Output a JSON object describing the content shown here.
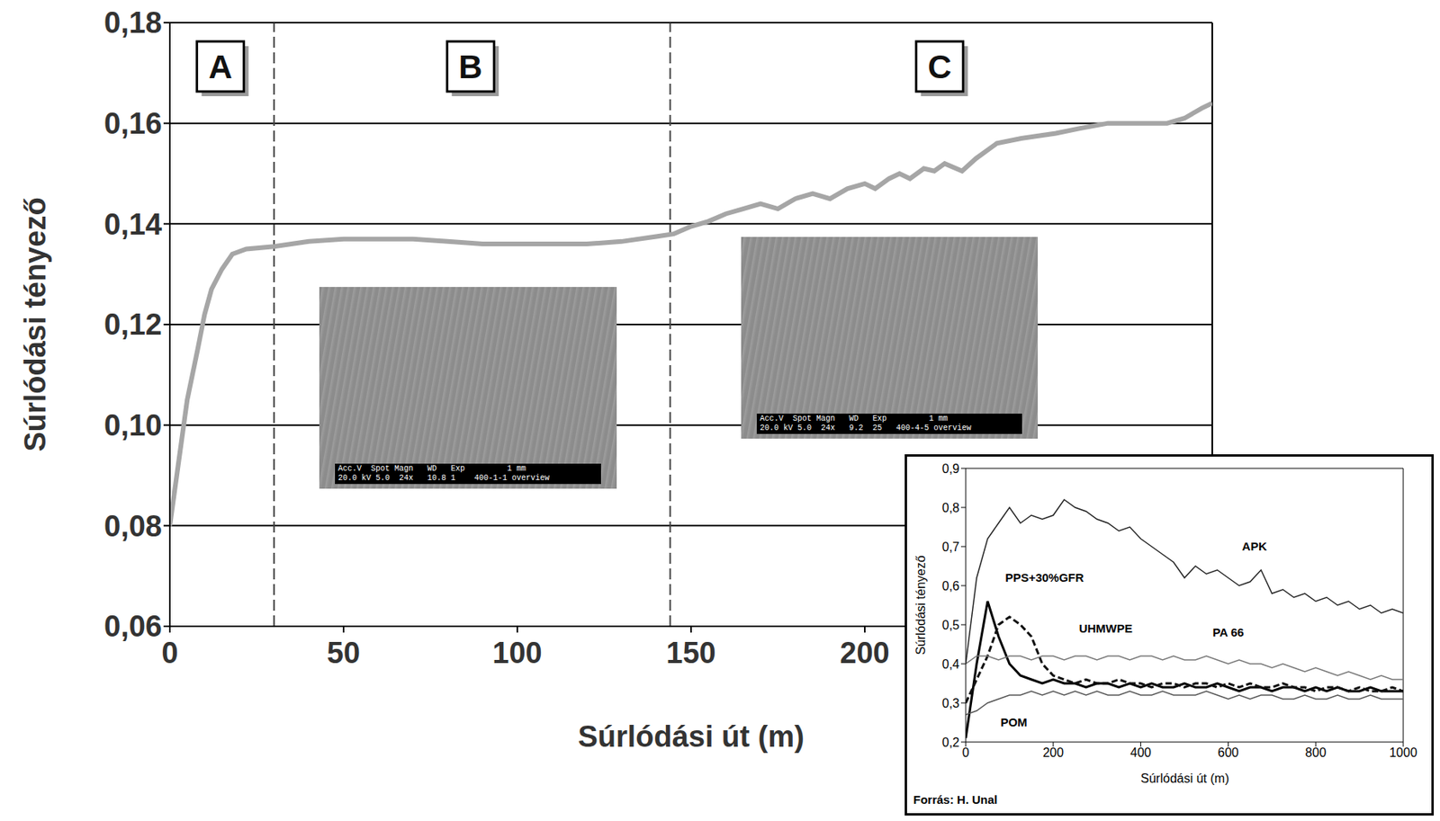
{
  "chart_data": [
    {
      "type": "line",
      "x_label": "Súrlódási út (m)",
      "y_label": "Súrlódási tényező",
      "color": "#a6a6a6",
      "grid": true,
      "xlim": [
        0,
        300
      ],
      "xticks": [
        0,
        50,
        100,
        150,
        200
      ],
      "ylim": [
        0.06,
        0.18
      ],
      "yticks": [
        {
          "value": 0.06,
          "label": "0,06"
        },
        {
          "value": 0.08,
          "label": "0,08"
        },
        {
          "value": 0.1,
          "label": "0,10"
        },
        {
          "value": 0.12,
          "label": "0,12"
        },
        {
          "value": 0.14,
          "label": "0,14"
        },
        {
          "value": 0.16,
          "label": "0,16"
        },
        {
          "value": 0.18,
          "label": "0,18"
        }
      ],
      "x": [
        0,
        2,
        5,
        8,
        10,
        12,
        15,
        18,
        22,
        30,
        40,
        50,
        60,
        70,
        80,
        90,
        100,
        110,
        120,
        130,
        140,
        145,
        150,
        155,
        160,
        165,
        170,
        175,
        180,
        185,
        190,
        195,
        200,
        203,
        207,
        210,
        213,
        217,
        220,
        223,
        228,
        232,
        238,
        245,
        255,
        262,
        270,
        280,
        287,
        292,
        297,
        300
      ],
      "values": [
        0.08,
        0.09,
        0.105,
        0.115,
        0.122,
        0.127,
        0.131,
        0.134,
        0.135,
        0.1355,
        0.1365,
        0.137,
        0.137,
        0.137,
        0.1365,
        0.136,
        0.136,
        0.136,
        0.136,
        0.1365,
        0.1375,
        0.138,
        0.1395,
        0.1405,
        0.142,
        0.143,
        0.144,
        0.143,
        0.145,
        0.146,
        0.145,
        0.147,
        0.148,
        0.147,
        0.149,
        0.15,
        0.149,
        0.151,
        0.1505,
        0.152,
        0.1505,
        0.153,
        0.156,
        0.157,
        0.158,
        0.159,
        0.16,
        0.16,
        0.16,
        0.161,
        0.163,
        0.164
      ],
      "regions": [
        {
          "label": "A",
          "start": 0,
          "end": 30
        },
        {
          "label": "B",
          "start": 30,
          "end": 144
        },
        {
          "label": "C",
          "start": 144,
          "end": 300
        }
      ],
      "images": [
        {
          "caption_lines": [
            "Acc.V  Spot Magn   WD   Exp         1 mm",
            "20.0 kV 5.0  24x   10.8 1    400-1-1 overview"
          ]
        },
        {
          "caption_lines": [
            "Acc.V  Spot Magn   WD   Exp         1 mm",
            "20.0 kV 5.0  24x   9.2  25   400-4-5 overview"
          ]
        }
      ]
    },
    {
      "type": "line",
      "x_label": "Súrlódási út (m)",
      "y_label": "Súrlódási tényező",
      "source": "Forrás: H. Unal",
      "grid": false,
      "xlim": [
        0,
        1000
      ],
      "xticks": [
        0,
        200,
        400,
        600,
        800,
        1000
      ],
      "ylim": [
        0.2,
        0.9
      ],
      "yticks": [
        {
          "value": 0.2,
          "label": "0,2"
        },
        {
          "value": 0.3,
          "label": "0,3"
        },
        {
          "value": 0.4,
          "label": "0,4"
        },
        {
          "value": 0.5,
          "label": "0,5"
        },
        {
          "value": 0.6,
          "label": "0,6"
        },
        {
          "value": 0.7,
          "label": "0,7"
        },
        {
          "value": 0.8,
          "label": "0,8"
        },
        {
          "value": 0.9,
          "label": "0,9"
        }
      ],
      "x": [
        0,
        25,
        50,
        75,
        100,
        125,
        150,
        175,
        200,
        225,
        250,
        275,
        300,
        325,
        350,
        375,
        400,
        425,
        450,
        475,
        500,
        525,
        550,
        575,
        600,
        625,
        650,
        675,
        700,
        725,
        750,
        775,
        800,
        825,
        850,
        875,
        900,
        925,
        950,
        975,
        1000
      ],
      "series": [
        {
          "name": "APK",
          "color": "#222222",
          "line_style": "solid",
          "values": [
            0.4,
            0.62,
            0.72,
            0.76,
            0.8,
            0.76,
            0.78,
            0.77,
            0.78,
            0.82,
            0.8,
            0.79,
            0.77,
            0.76,
            0.74,
            0.75,
            0.72,
            0.7,
            0.68,
            0.66,
            0.62,
            0.65,
            0.63,
            0.64,
            0.62,
            0.6,
            0.61,
            0.64,
            0.58,
            0.59,
            0.57,
            0.58,
            0.56,
            0.57,
            0.55,
            0.56,
            0.54,
            0.55,
            0.53,
            0.54,
            0.53
          ]
        },
        {
          "name": "PPS+30%GFR",
          "color": "#000000",
          "line_style": "solid",
          "values": [
            0.21,
            0.4,
            0.56,
            0.47,
            0.4,
            0.37,
            0.36,
            0.35,
            0.36,
            0.35,
            0.35,
            0.34,
            0.35,
            0.35,
            0.34,
            0.35,
            0.34,
            0.35,
            0.34,
            0.34,
            0.35,
            0.34,
            0.34,
            0.35,
            0.34,
            0.33,
            0.34,
            0.34,
            0.33,
            0.34,
            0.34,
            0.33,
            0.34,
            0.33,
            0.34,
            0.33,
            0.33,
            0.34,
            0.33,
            0.33,
            0.33
          ]
        },
        {
          "name": "UHMWPE",
          "color": "#111111",
          "line_style": "dashed",
          "values": [
            0.3,
            0.36,
            0.42,
            0.5,
            0.52,
            0.5,
            0.47,
            0.4,
            0.37,
            0.36,
            0.35,
            0.36,
            0.35,
            0.35,
            0.36,
            0.35,
            0.35,
            0.34,
            0.35,
            0.35,
            0.34,
            0.35,
            0.35,
            0.34,
            0.35,
            0.34,
            0.35,
            0.34,
            0.34,
            0.35,
            0.34,
            0.34,
            0.33,
            0.34,
            0.34,
            0.33,
            0.34,
            0.33,
            0.33,
            0.34,
            0.33
          ]
        },
        {
          "name": "PA 66",
          "color": "#777777",
          "line_style": "solid",
          "values": [
            0.4,
            0.42,
            0.42,
            0.41,
            0.42,
            0.42,
            0.41,
            0.42,
            0.42,
            0.41,
            0.42,
            0.42,
            0.41,
            0.42,
            0.42,
            0.41,
            0.42,
            0.42,
            0.41,
            0.42,
            0.41,
            0.41,
            0.42,
            0.41,
            0.4,
            0.41,
            0.4,
            0.4,
            0.39,
            0.4,
            0.39,
            0.38,
            0.39,
            0.38,
            0.37,
            0.38,
            0.37,
            0.36,
            0.37,
            0.36,
            0.36
          ]
        },
        {
          "name": "POM",
          "color": "#555555",
          "line_style": "solid",
          "values": [
            0.27,
            0.28,
            0.3,
            0.31,
            0.32,
            0.32,
            0.33,
            0.32,
            0.33,
            0.32,
            0.33,
            0.32,
            0.33,
            0.32,
            0.32,
            0.33,
            0.32,
            0.32,
            0.33,
            0.32,
            0.32,
            0.32,
            0.33,
            0.32,
            0.31,
            0.32,
            0.31,
            0.32,
            0.32,
            0.31,
            0.31,
            0.32,
            0.31,
            0.31,
            0.32,
            0.31,
            0.31,
            0.32,
            0.31,
            0.31,
            0.31
          ]
        }
      ]
    }
  ]
}
